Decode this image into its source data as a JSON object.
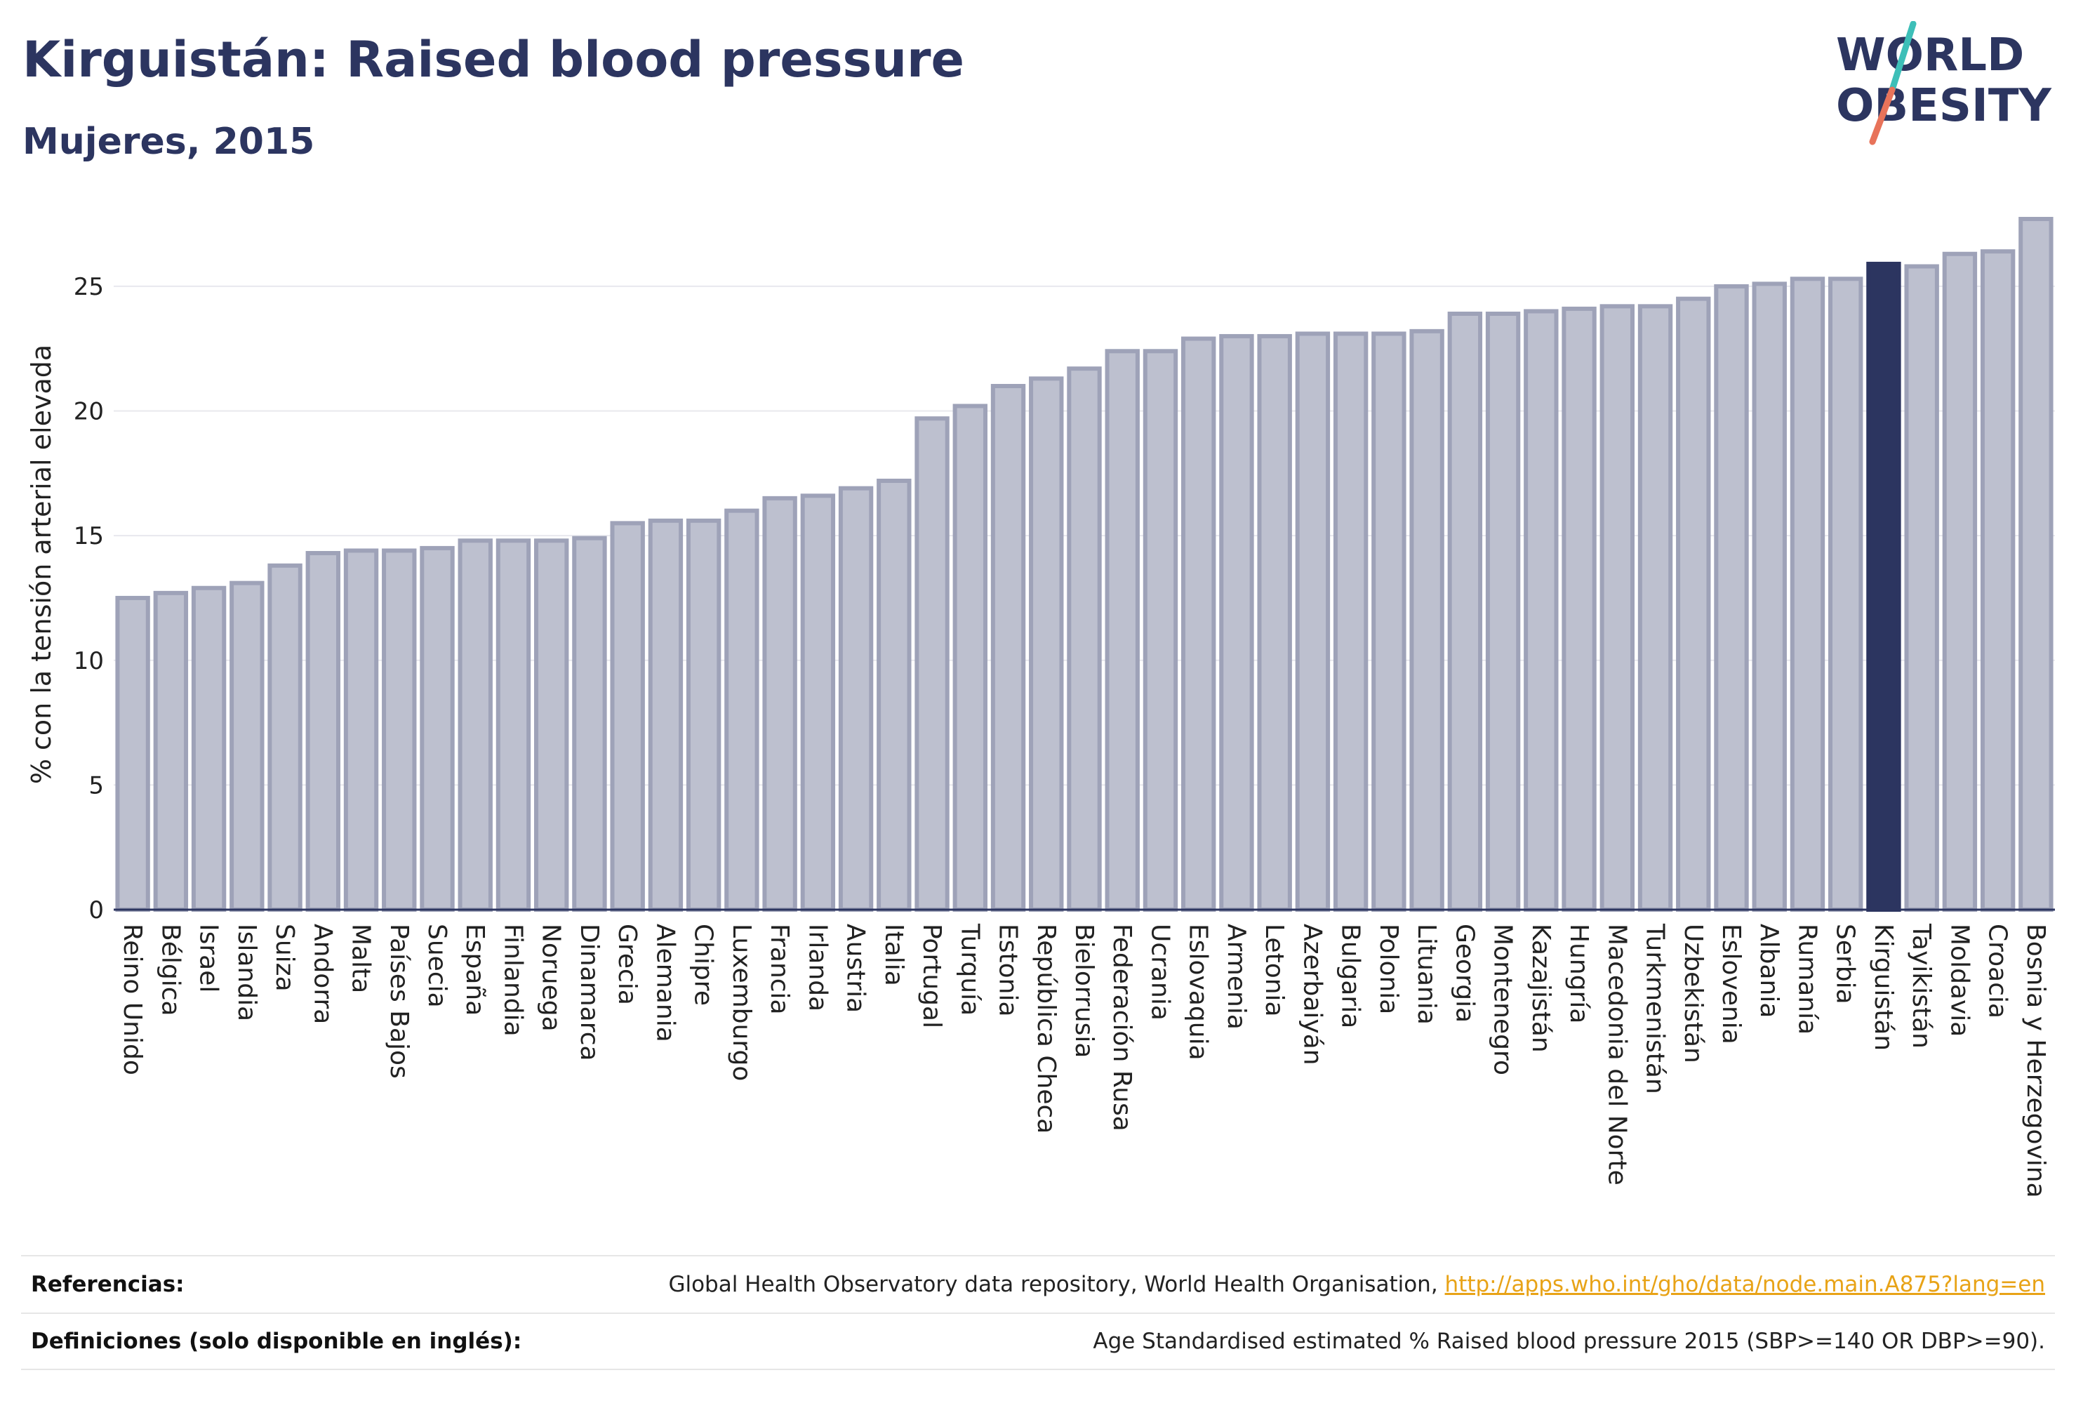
{
  "header": {
    "title": "Kirguistán: Raised blood pressure",
    "subtitle": "Mujeres, 2015"
  },
  "logo": {
    "line1": "WORLD",
    "line2": "OBESITY",
    "colors": {
      "text": "#2c3560",
      "slash_teal": "#3dbfb8",
      "slash_coral": "#e8735a"
    }
  },
  "chart_data": {
    "type": "bar",
    "ylabel": "% con la tensión arterial elevada",
    "xlabel": "",
    "ylim": [
      0,
      27.7
    ],
    "yticks": [
      0,
      5,
      10,
      15,
      20,
      25
    ],
    "grid": true,
    "highlight": "Kirguistán",
    "colors": {
      "bar": "#bdc0cf",
      "bar_border": "#9ea2b8",
      "highlight": "#2c3560"
    },
    "categories": [
      "Reino Unido",
      "Bélgica",
      "Israel",
      "Islandia",
      "Suiza",
      "Andorra",
      "Malta",
      "Países Bajos",
      "Suecia",
      "España",
      "Finlandia",
      "Noruega",
      "Dinamarca",
      "Grecia",
      "Alemania",
      "Chipre",
      "Luxemburgo",
      "Francia",
      "Irlanda",
      "Austria",
      "Italia",
      "Portugal",
      "Turquía",
      "Estonia",
      "República Checa",
      "Bielorrusia",
      "Federación Rusa",
      "Ucrania",
      "Eslovaquia",
      "Armenia",
      "Letonia",
      "Azerbaiyán",
      "Bulgaria",
      "Polonia",
      "Lituania",
      "Georgia",
      "Montenegro",
      "Kazajistán",
      "Hungría",
      "Macedonia del Norte",
      "Turkmenistán",
      "Uzbekistán",
      "Eslovenia",
      "Albania",
      "Rumanía",
      "Serbia",
      "Kirguistán",
      "Tayikistán",
      "Moldavia",
      "Croacia",
      "Bosnia y Herzegovina"
    ],
    "values": [
      12.5,
      12.7,
      12.9,
      13.1,
      13.8,
      14.3,
      14.4,
      14.4,
      14.5,
      14.8,
      14.8,
      14.8,
      14.9,
      15.5,
      15.6,
      15.6,
      16.0,
      16.5,
      16.6,
      16.9,
      17.2,
      19.7,
      20.2,
      21.0,
      21.3,
      21.7,
      22.4,
      22.4,
      22.9,
      23.0,
      23.0,
      23.1,
      23.1,
      23.1,
      23.2,
      23.9,
      23.9,
      24.0,
      24.1,
      24.2,
      24.2,
      24.5,
      25.0,
      25.1,
      25.3,
      25.3,
      25.9,
      25.8,
      26.3,
      26.4,
      27.7
    ]
  },
  "footer": {
    "references_label": "Referencias:",
    "references_text": "Global Health Observatory data repository, World Health Organisation, ",
    "references_link": "http://apps.who.int/gho/data/node.main.A875?lang=en",
    "definitions_label": "Definiciones (solo disponible en inglés):",
    "definitions_text": "Age Standardised estimated % Raised blood pressure 2015 (SBP>=140 OR DBP>=90)."
  }
}
